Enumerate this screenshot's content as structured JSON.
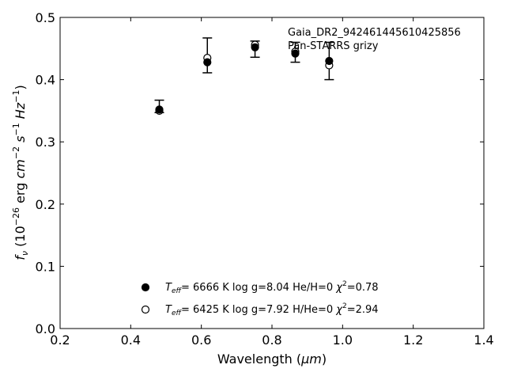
{
  "chart_data": {
    "type": "scatter",
    "xlabel_main": "Wavelength (",
    "xlabel_unit": "μm",
    "xlabel_close": ")",
    "ylabel": {
      "f": "f",
      "nu": "ν",
      "text1": " (10",
      "exp1": "−26",
      "text2": " erg ",
      "cm": "cm",
      "exp2": "−2",
      "s": " s",
      "exp3": "−1",
      "hz": " Hz",
      "exp4": "−1",
      "text3": ")"
    },
    "xlim": [
      0.2,
      1.4
    ],
    "ylim": [
      0.0,
      0.5
    ],
    "xticks": [
      "0.2",
      "0.4",
      "0.6",
      "0.8",
      "1.0",
      "1.2",
      "1.4"
    ],
    "yticks": [
      "0.0",
      "0.1",
      "0.2",
      "0.3",
      "0.4",
      "0.5"
    ],
    "annotations": [
      "Gaia_DR2_942461445610425856",
      "Pan-STARRS grizy"
    ],
    "observed": {
      "x": [
        0.481,
        0.617,
        0.752,
        0.866,
        0.962
      ],
      "y": [
        0.357,
        0.439,
        0.449,
        0.444,
        0.43
      ],
      "yerr": [
        0.01,
        0.028,
        0.013,
        0.016,
        0.03
      ]
    },
    "series": [
      {
        "marker": "filled",
        "x": [
          0.481,
          0.617,
          0.752,
          0.866,
          0.962
        ],
        "y": [
          0.352,
          0.428,
          0.452,
          0.442,
          0.43
        ],
        "legend": {
          "t": "T",
          "eff": "eff",
          "rest": "=  6666 K  log g=8.04  He/H=0  ",
          "chi": "χ",
          "two": "2",
          "val": "=0.78"
        }
      },
      {
        "marker": "open",
        "x": [
          0.481,
          0.617,
          0.752,
          0.866,
          0.962
        ],
        "y": [
          0.35,
          0.435,
          0.456,
          0.445,
          0.423
        ],
        "legend": {
          "t": "T",
          "eff": "eff",
          "rest": "=  6425 K  log g=7.92  H/He=0  ",
          "chi": "χ",
          "two": "2",
          "val": "=2.94"
        }
      }
    ]
  }
}
